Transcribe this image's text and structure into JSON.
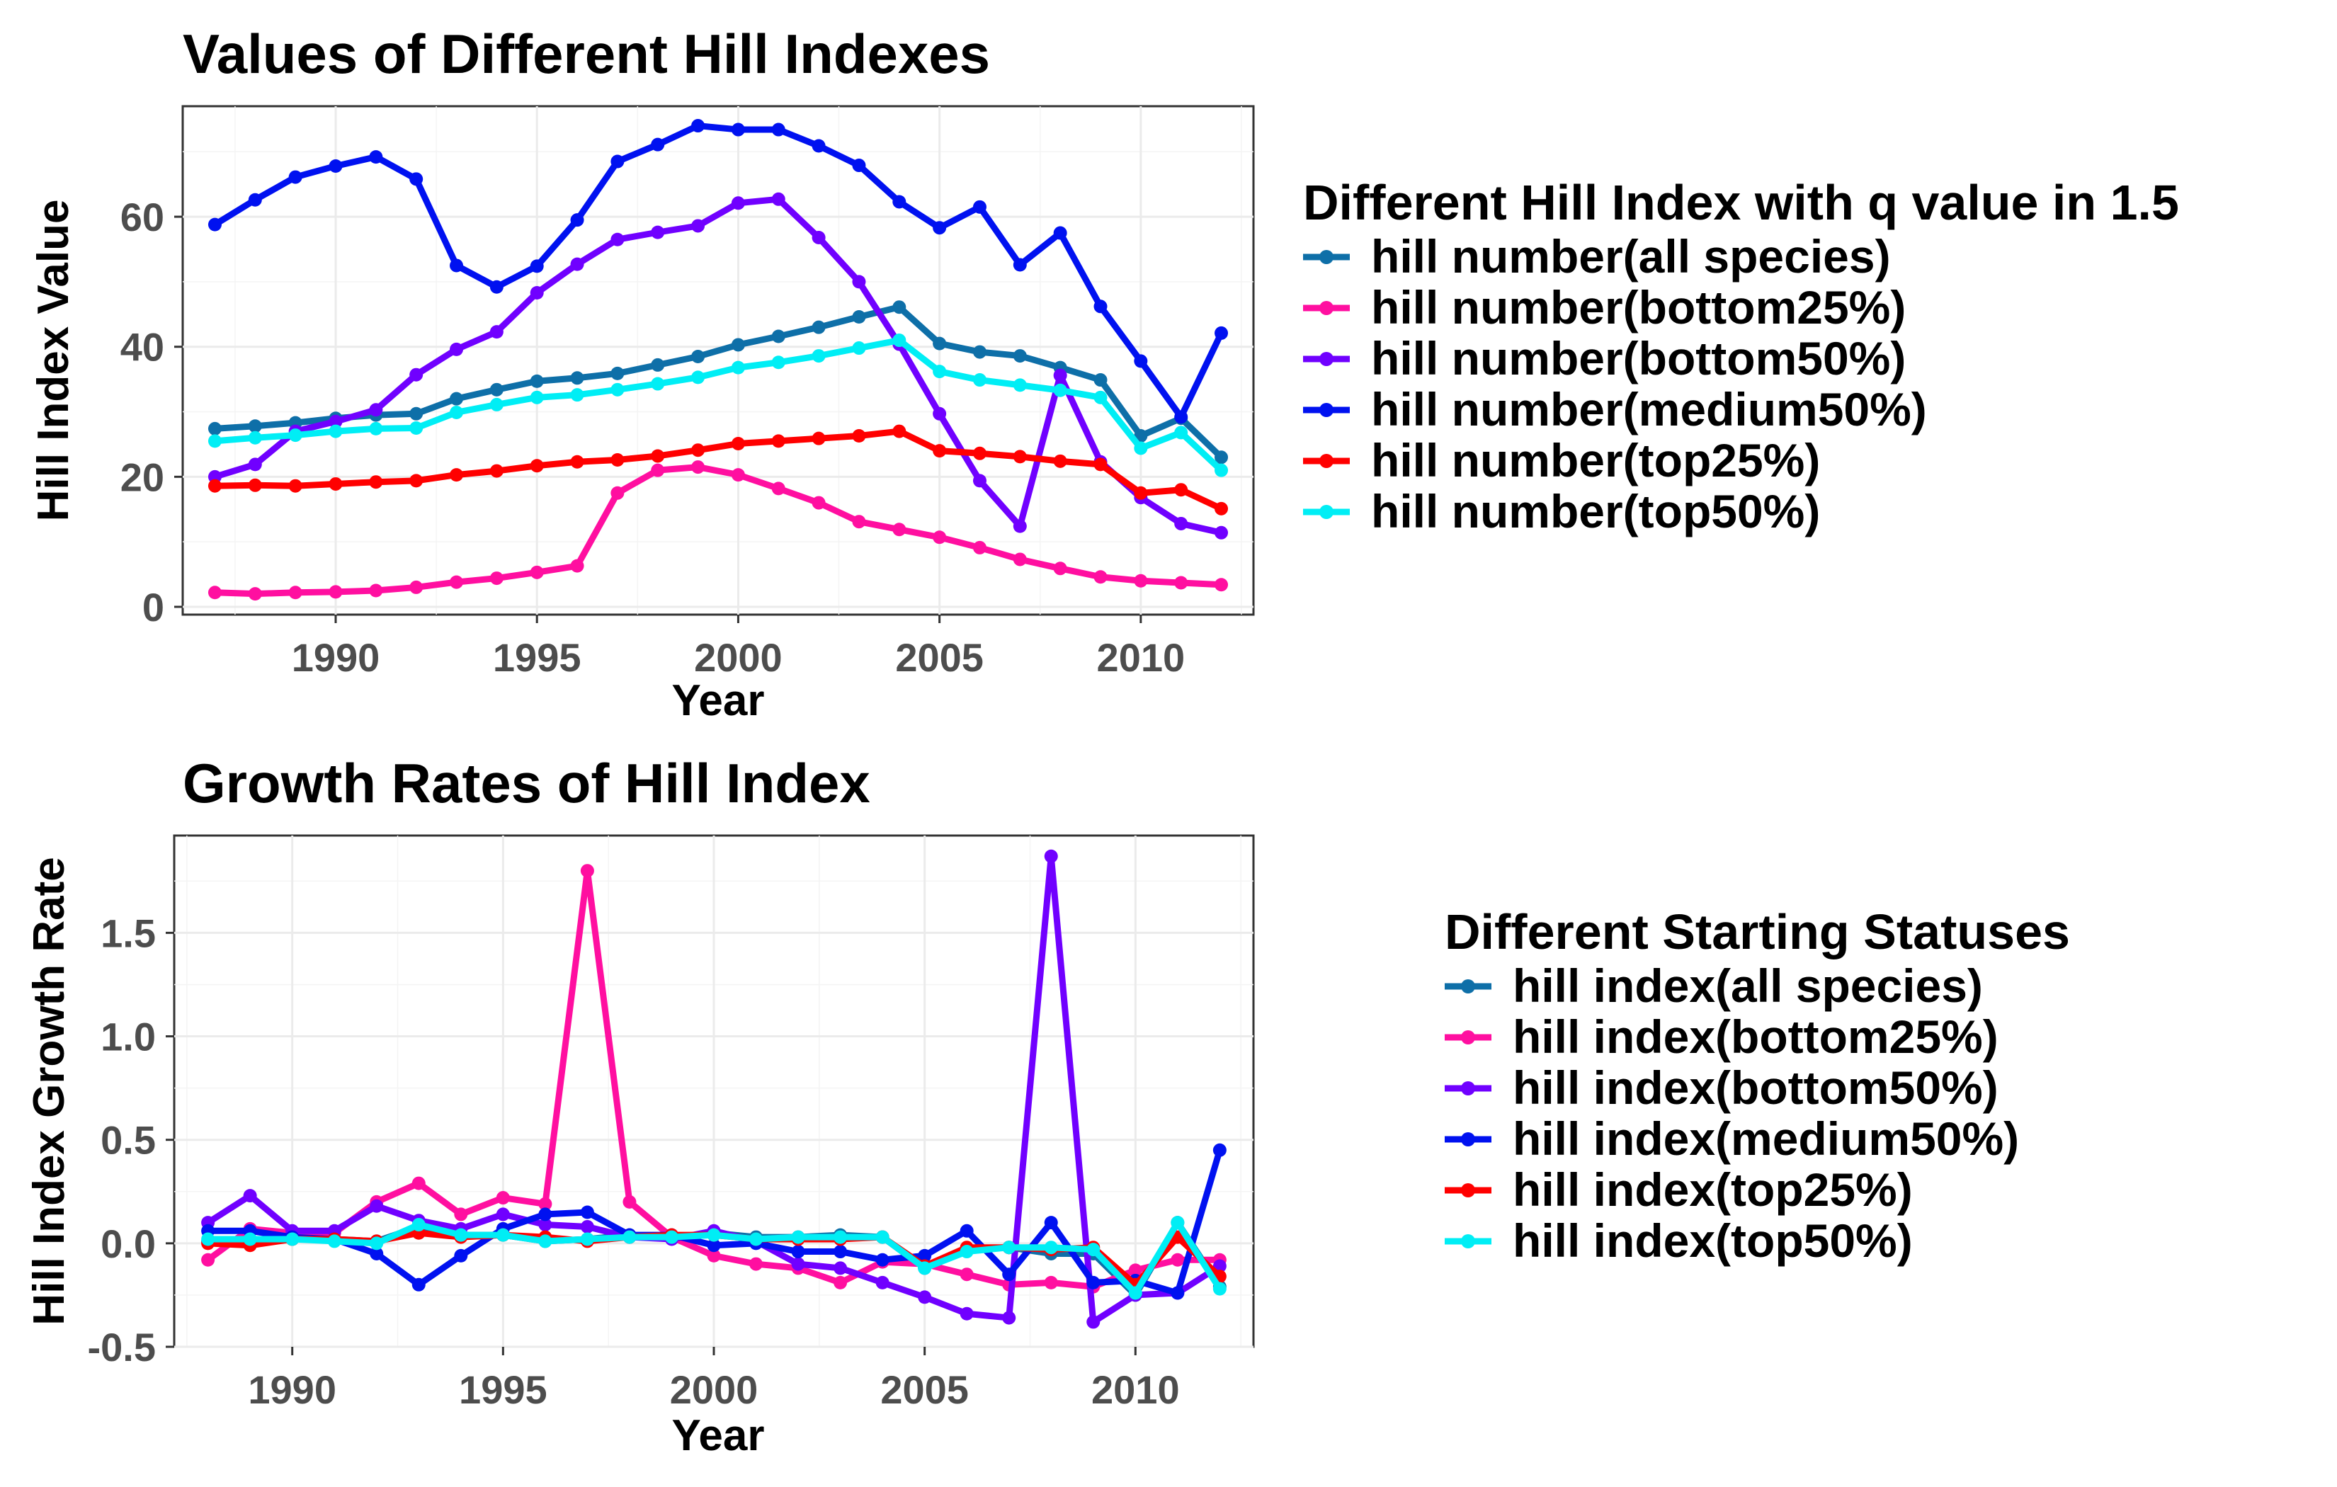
{
  "chart_data": [
    {
      "type": "line",
      "title": "Values of Different Hill Indexes",
      "xlabel": "Year",
      "ylabel": "Hill Index Value",
      "xlim": [
        1986.2,
        2012.8
      ],
      "ylim": [
        -1.2,
        77
      ],
      "xticks": [
        1990,
        1995,
        2000,
        2005,
        2010
      ],
      "yticks": [
        0,
        20,
        40,
        60
      ],
      "ytick_labels": [
        "0",
        "20",
        "40",
        "60"
      ],
      "grid": true,
      "legend_position": "right",
      "legend_title": "Different Hill Index with q value in 1.5",
      "x": [
        1987,
        1988,
        1989,
        1990,
        1991,
        1992,
        1993,
        1994,
        1995,
        1996,
        1997,
        1998,
        1999,
        2000,
        2001,
        2002,
        2003,
        2004,
        2005,
        2006,
        2007,
        2008,
        2009,
        2010,
        2011,
        2012
      ],
      "series": [
        {
          "name": "hill number(all species)",
          "color": "#0e6fa8",
          "values": [
            27.4,
            27.8,
            28.3,
            29.0,
            29.5,
            29.7,
            32.0,
            33.4,
            34.7,
            35.2,
            35.9,
            37.2,
            38.5,
            40.3,
            41.6,
            43.0,
            44.6,
            46.1,
            40.5,
            39.2,
            38.6,
            36.8,
            34.9,
            26.3,
            29.0,
            23.0
          ]
        },
        {
          "name": "hill number(bottom25%)",
          "color": "#ff0fa0",
          "values": [
            2.2,
            2.0,
            2.2,
            2.3,
            2.5,
            3.0,
            3.8,
            4.4,
            5.3,
            6.3,
            17.5,
            21.0,
            21.5,
            20.3,
            18.2,
            16.0,
            13.1,
            11.9,
            10.7,
            9.1,
            7.3,
            5.9,
            4.6,
            4.0,
            3.7,
            3.4
          ]
        },
        {
          "name": "hill number(bottom50%)",
          "color": "#7000ff",
          "values": [
            20.0,
            21.9,
            27.0,
            28.5,
            30.3,
            35.7,
            39.6,
            42.3,
            48.3,
            52.7,
            56.5,
            57.6,
            58.6,
            62.1,
            62.7,
            56.8,
            50.0,
            40.4,
            29.7,
            19.4,
            12.4,
            35.6,
            22.3,
            16.8,
            12.8,
            11.4
          ]
        },
        {
          "name": "hill number(medium50%)",
          "color": "#0011f0",
          "values": [
            58.8,
            62.6,
            66.1,
            67.8,
            69.2,
            65.8,
            52.5,
            49.2,
            52.4,
            59.5,
            68.5,
            71.1,
            74.0,
            73.4,
            73.4,
            70.9,
            67.9,
            62.3,
            58.3,
            61.5,
            52.6,
            57.5,
            46.2,
            37.8,
            29.2,
            42.1
          ]
        },
        {
          "name": "hill number(top25%)",
          "color": "#ff0000",
          "values": [
            18.6,
            18.7,
            18.6,
            18.9,
            19.2,
            19.4,
            20.3,
            20.9,
            21.7,
            22.3,
            22.6,
            23.2,
            24.1,
            25.1,
            25.5,
            25.9,
            26.3,
            27.0,
            24.0,
            23.6,
            23.1,
            22.4,
            21.9,
            17.5,
            18.0,
            15.1
          ]
        },
        {
          "name": "hill number(top50%)",
          "color": "#00eef5",
          "values": [
            25.5,
            26.0,
            26.4,
            27.0,
            27.4,
            27.5,
            29.9,
            31.1,
            32.2,
            32.6,
            33.4,
            34.3,
            35.3,
            36.8,
            37.6,
            38.6,
            39.8,
            41.0,
            36.2,
            34.9,
            34.1,
            33.3,
            32.2,
            24.4,
            26.8,
            21.0
          ]
        }
      ]
    },
    {
      "type": "line",
      "title": "Growth Rates of Hill Index",
      "xlabel": "Year",
      "ylabel": "Hill Index Growth Rate",
      "xlim": [
        1987.2,
        2012.8
      ],
      "ylim": [
        -0.5,
        1.97
      ],
      "xticks": [
        1990,
        1995,
        2000,
        2005,
        2010
      ],
      "yticks": [
        -0.5,
        0.0,
        0.5,
        1.0,
        1.5
      ],
      "ytick_labels": [
        "-0.5",
        "0.0",
        "0.5",
        "1.0",
        "1.5"
      ],
      "grid": true,
      "legend_position": "right",
      "legend_title": "Different Starting Statuses",
      "x": [
        1988,
        1989,
        1990,
        1991,
        1992,
        1993,
        1994,
        1995,
        1996,
        1997,
        1998,
        1999,
        2000,
        2001,
        2002,
        2003,
        2004,
        2005,
        2006,
        2007,
        2008,
        2009,
        2010,
        2011,
        2012
      ],
      "series": [
        {
          "name": "hill index(all species)",
          "color": "#0e6fa8",
          "values": [
            0.01,
            0.02,
            0.02,
            0.02,
            0.01,
            0.08,
            0.04,
            0.04,
            0.01,
            0.02,
            0.04,
            0.03,
            0.05,
            0.03,
            0.03,
            0.04,
            0.03,
            -0.12,
            -0.03,
            -0.02,
            -0.05,
            -0.05,
            -0.25,
            0.1,
            -0.21
          ]
        },
        {
          "name": "hill index(bottom25%)",
          "color": "#ff0fa0",
          "values": [
            -0.08,
            0.07,
            0.05,
            0.05,
            0.2,
            0.29,
            0.14,
            0.22,
            0.19,
            1.8,
            0.2,
            0.03,
            -0.06,
            -0.1,
            -0.12,
            -0.19,
            -0.09,
            -0.1,
            -0.15,
            -0.2,
            -0.19,
            -0.21,
            -0.13,
            -0.08,
            -0.08
          ]
        },
        {
          "name": "hill index(bottom50%)",
          "color": "#7000ff",
          "values": [
            0.1,
            0.23,
            0.06,
            0.06,
            0.18,
            0.11,
            0.07,
            0.14,
            0.09,
            0.08,
            0.03,
            0.02,
            0.06,
            0.01,
            -0.1,
            -0.12,
            -0.19,
            -0.26,
            -0.34,
            -0.36,
            1.87,
            -0.38,
            -0.25,
            -0.24,
            -0.11
          ]
        },
        {
          "name": "hill index(medium50%)",
          "color": "#0011f0",
          "values": [
            0.06,
            0.06,
            0.03,
            0.02,
            -0.05,
            -0.2,
            -0.06,
            0.07,
            0.14,
            0.15,
            0.04,
            0.04,
            -0.01,
            0.0,
            -0.04,
            -0.04,
            -0.08,
            -0.06,
            0.06,
            -0.15,
            0.1,
            -0.19,
            -0.18,
            -0.24,
            0.45
          ]
        },
        {
          "name": "hill index(top25%)",
          "color": "#ff0000",
          "values": [
            0.0,
            -0.01,
            0.02,
            0.02,
            0.01,
            0.05,
            0.03,
            0.04,
            0.03,
            0.01,
            0.03,
            0.04,
            0.04,
            0.02,
            0.02,
            0.02,
            0.03,
            -0.11,
            -0.02,
            -0.02,
            -0.03,
            -0.02,
            -0.2,
            0.03,
            -0.16
          ]
        },
        {
          "name": "hill index(top50%)",
          "color": "#00eef5",
          "values": [
            0.02,
            0.02,
            0.02,
            0.01,
            0.0,
            0.09,
            0.04,
            0.04,
            0.01,
            0.02,
            0.03,
            0.03,
            0.04,
            0.02,
            0.03,
            0.03,
            0.03,
            -0.12,
            -0.04,
            -0.02,
            -0.02,
            -0.03,
            -0.24,
            0.1,
            -0.22
          ]
        }
      ]
    }
  ]
}
